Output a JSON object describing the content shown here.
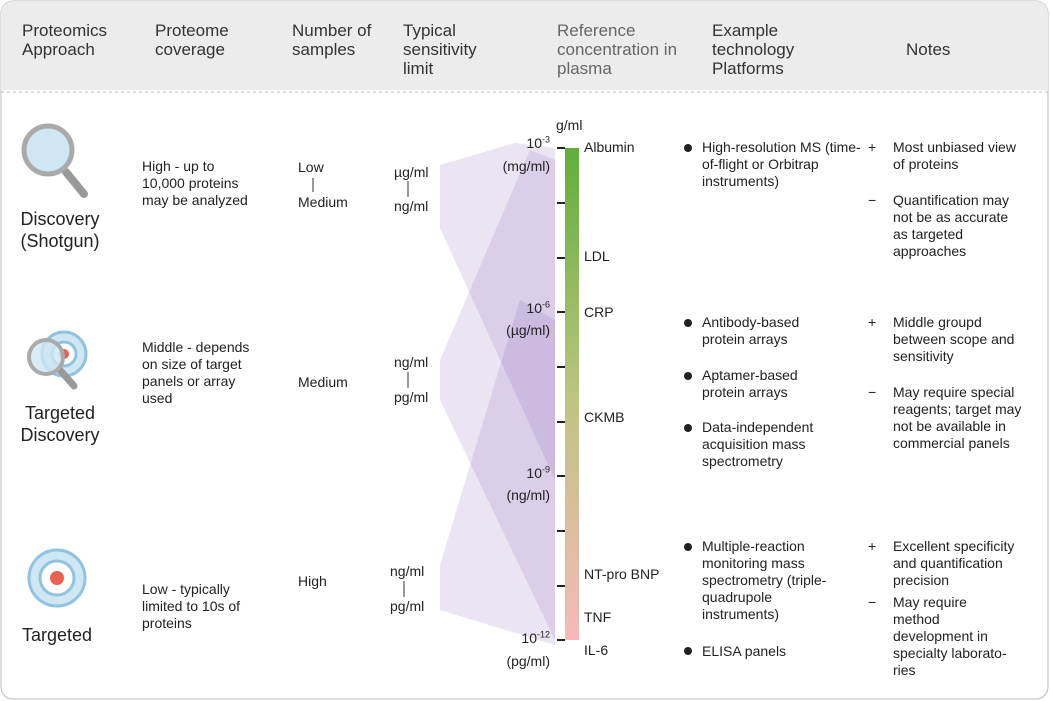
{
  "headers": [
    "Proteomics Approach",
    "Proteome coverage",
    "Number of samples",
    "Typical sensitivity limit",
    "Reference concentration in plasma",
    "Example technology Platforms",
    "Notes"
  ],
  "scale": {
    "unit": "g/ml",
    "ticks": [
      {
        "base": "10",
        "exp": "-3",
        "unit": "(mg/ml)"
      },
      {
        "base": "10",
        "exp": "-6",
        "unit": "(µg/ml)"
      },
      {
        "base": "10",
        "exp": "-9",
        "unit": "(ng/ml)"
      },
      {
        "base": "10",
        "exp": "-12",
        "unit": "(pg/ml)"
      }
    ],
    "markers": [
      "Albumin",
      "LDL",
      "CRP",
      "CKMB",
      "NT-pro BNP",
      "TNF",
      "IL-6"
    ]
  },
  "rows": [
    {
      "approach": "Discovery (Shotgun)",
      "coverage": "High - up to 10,000 proteins may be analyzed",
      "samples": {
        "from": "Low",
        "to": "Medium"
      },
      "sensitivity": {
        "from": "µg/ml",
        "to": "ng/ml"
      },
      "platforms": [
        "High-resolution MS (time-of-flight or Orbitrap instruments)"
      ],
      "notes": [
        {
          "sign": "+",
          "text": "Most unbiased view of proteins"
        },
        {
          "sign": "−",
          "text": "Quantification may not be as accurate as targeted approaches"
        }
      ]
    },
    {
      "approach": "Targeted Discovery",
      "coverage": "Middle - depends on size of target panels or array used",
      "samples": {
        "from": "Medium"
      },
      "sensitivity": {
        "from": "ng/ml",
        "to": "pg/ml"
      },
      "platforms": [
        "Antibody-based protein arrays",
        "Aptamer-based protein arrays",
        "Data-independent acquisition mass spectrometry"
      ],
      "notes": [
        {
          "sign": "+",
          "text": "Middle groupd between scope and sensitivity"
        },
        {
          "sign": "−",
          "text": "May require special reagents; target may not be available in commercial panels"
        }
      ]
    },
    {
      "approach": "Targeted",
      "coverage": "Low - typically limited to 10s of proteins",
      "samples": {
        "from": "High"
      },
      "sensitivity": {
        "from": "ng/ml",
        "to": "pg/ml"
      },
      "platforms": [
        "Multiple-reaction monitoring mass spectrometry (triple-quadrupole instruments)",
        "ELISA panels"
      ],
      "notes": [
        {
          "sign": "+",
          "text": "Excellent specificity and quantification precision"
        },
        {
          "sign": "−",
          "text": "May require method development in specialty laborato-ries"
        }
      ]
    }
  ]
}
